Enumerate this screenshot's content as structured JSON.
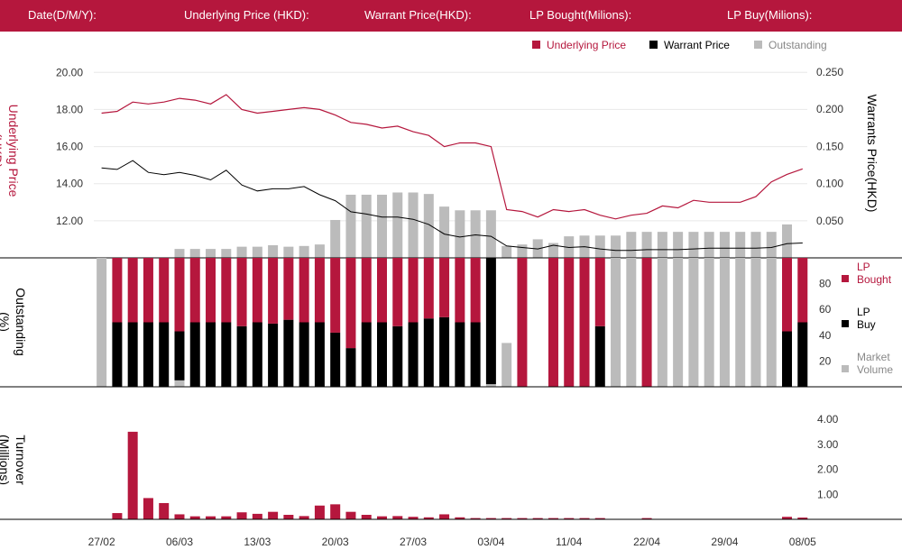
{
  "header": {
    "date_label": "Date(D/M/Y):",
    "underlying_label": "Underlying Price (HKD):",
    "warrant_label": "Warrant  Price(HKD):",
    "lp_bought_label": "LP Bought(Milions):",
    "lp_buy_label": "LP Buy(Milions):"
  },
  "colors": {
    "brand": "#b5173d",
    "underlying": "#b5173d",
    "warrant": "#000000",
    "outstanding": "#bbbbbb",
    "lp_bought": "#b5173d",
    "lp_buy": "#000000",
    "market_volume": "#bbbbbb",
    "turnover": "#b5173d"
  },
  "chart_data": [
    {
      "type": "line",
      "legend": [
        "Underlying Price",
        "Warrant  Price",
        "Outstanding"
      ],
      "legend_position": "top-right",
      "ylabel_left": "Underlying Price (HKD)",
      "ylabel_right": "Warrants  Price(HKD)",
      "left_ticks": [
        "20.00",
        "18.00",
        "16.00",
        "14.00",
        "12.00"
      ],
      "right_ticks": [
        "0.250",
        "0.200",
        "0.150",
        "0.100",
        "0.050"
      ],
      "ylim_left": [
        10,
        20.5
      ],
      "ylim_right": [
        0,
        0.25
      ],
      "grid": true,
      "series": [
        {
          "name": "Underlying Price",
          "axis": "left",
          "values": [
            17.8,
            17.9,
            18.4,
            18.3,
            18.4,
            18.6,
            18.5,
            18.3,
            18.8,
            18.0,
            17.8,
            17.9,
            18.0,
            18.1,
            18.0,
            17.7,
            17.3,
            17.2,
            17.0,
            17.1,
            16.8,
            16.6,
            16.0,
            16.2,
            16.2,
            16.0,
            12.6,
            12.5,
            12.2,
            12.6,
            12.5,
            12.6,
            12.3,
            12.1,
            12.3,
            12.4,
            12.8,
            12.7,
            13.1,
            13.0,
            13.0,
            13.0,
            13.3,
            14.1,
            14.5,
            14.8
          ]
        },
        {
          "name": "Warrant  Price",
          "axis": "right",
          "values": [
            0.121,
            0.119,
            0.131,
            0.115,
            0.112,
            0.115,
            0.111,
            0.105,
            0.118,
            0.098,
            0.09,
            0.093,
            0.093,
            0.096,
            0.085,
            0.077,
            0.062,
            0.059,
            0.055,
            0.055,
            0.052,
            0.045,
            0.032,
            0.028,
            0.031,
            0.029,
            0.016,
            0.014,
            0.012,
            0.017,
            0.014,
            0.015,
            0.012,
            0.01,
            0.01,
            0.011,
            0.011,
            0.011,
            0.012,
            0.013,
            0.013,
            0.013,
            0.013,
            0.014,
            0.019,
            0.02
          ]
        },
        {
          "name": "Outstanding",
          "axis": "right",
          "values": [
            0,
            0,
            0,
            0,
            0,
            0.012,
            0.012,
            0.012,
            0.012,
            0.015,
            0.015,
            0.017,
            0.015,
            0.016,
            0.018,
            0.051,
            0.085,
            0.085,
            0.085,
            0.088,
            0.088,
            0.086,
            0.069,
            0.064,
            0.064,
            0.064,
            0.016,
            0.018,
            0.025,
            0.02,
            0.029,
            0.03,
            0.03,
            0.03,
            0.035,
            0.035,
            0.035,
            0.035,
            0.035,
            0.035,
            0.035,
            0.035,
            0.035,
            0.035,
            0.045,
            0
          ]
        }
      ]
    },
    {
      "type": "bar",
      "ylabel": "Outstanding (%)",
      "ticks": [
        "80",
        "60",
        "40",
        "20"
      ],
      "ylim": [
        0,
        100
      ],
      "legend": [
        "LP Bought",
        "LP Buy",
        "Market Volume"
      ],
      "legend_position": "right",
      "series": [
        {
          "name": "LP Bought",
          "values": [
            0,
            50,
            50,
            50,
            50,
            57,
            50,
            50,
            50,
            53,
            50,
            51,
            48,
            50,
            50,
            58,
            70,
            50,
            50,
            53,
            50,
            47,
            46,
            50,
            50,
            0,
            0,
            100,
            0,
            100,
            100,
            100,
            53,
            0,
            0,
            100,
            0,
            0,
            0,
            0,
            0,
            0,
            0,
            0,
            57,
            50
          ]
        },
        {
          "name": "LP Buy",
          "values": [
            0,
            50,
            50,
            50,
            50,
            38,
            50,
            50,
            50,
            47,
            50,
            49,
            52,
            50,
            50,
            42,
            30,
            50,
            50,
            47,
            50,
            53,
            54,
            50,
            50,
            98,
            0,
            0,
            0,
            0,
            0,
            0,
            47,
            0,
            0,
            0,
            0,
            0,
            0,
            0,
            0,
            0,
            0,
            0,
            43,
            50
          ]
        },
        {
          "name": "Market Volume",
          "values": [
            100,
            0,
            0,
            0,
            0,
            5,
            0,
            0,
            0,
            0,
            0,
            0,
            0,
            0,
            0,
            0,
            0,
            0,
            0,
            0,
            0,
            0,
            0,
            0,
            0,
            2,
            34,
            0,
            0,
            0,
            0,
            0,
            0,
            100,
            100,
            0,
            100,
            100,
            100,
            100,
            100,
            100,
            100,
            100,
            0,
            0
          ]
        }
      ]
    },
    {
      "type": "bar",
      "ylabel": "Turnover (Millions)",
      "ticks": [
        "4.00",
        "3.00",
        "2.00",
        "1.00"
      ],
      "ylim": [
        0,
        4.2
      ],
      "x_ticks": [
        "27/02",
        "06/03",
        "13/03",
        "20/03",
        "27/03",
        "03/04",
        "11/04",
        "22/04",
        "29/04",
        "08/05"
      ],
      "series": [
        {
          "name": "Turnover",
          "values": [
            0,
            0.25,
            3.5,
            0.85,
            0.65,
            0.2,
            0.12,
            0.12,
            0.12,
            0.28,
            0.22,
            0.3,
            0.18,
            0.13,
            0.55,
            0.6,
            0.3,
            0.18,
            0.12,
            0.13,
            0.1,
            0.08,
            0.2,
            0.08,
            0.05,
            0.05,
            0.05,
            0.05,
            0.05,
            0.05,
            0.05,
            0.05,
            0.05,
            0,
            0,
            0.05,
            0,
            0,
            0,
            0,
            0,
            0,
            0,
            0,
            0.1,
            0.07
          ]
        }
      ]
    }
  ]
}
